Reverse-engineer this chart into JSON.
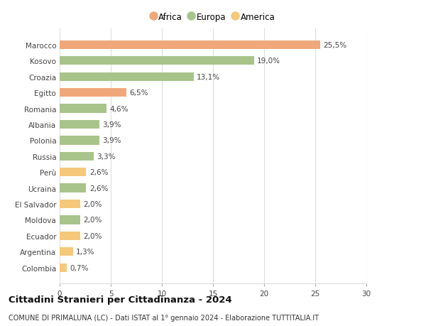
{
  "categories": [
    "Colombia",
    "Argentina",
    "Ecuador",
    "Moldova",
    "El Salvador",
    "Ucraina",
    "Perù",
    "Russia",
    "Polonia",
    "Albania",
    "Romania",
    "Egitto",
    "Croazia",
    "Kosovo",
    "Marocco"
  ],
  "values": [
    0.7,
    1.3,
    2.0,
    2.0,
    2.0,
    2.6,
    2.6,
    3.3,
    3.9,
    3.9,
    4.6,
    6.5,
    13.1,
    19.0,
    25.5
  ],
  "labels": [
    "0,7%",
    "1,3%",
    "2,0%",
    "2,0%",
    "2,0%",
    "2,6%",
    "2,6%",
    "3,3%",
    "3,9%",
    "3,9%",
    "4,6%",
    "6,5%",
    "13,1%",
    "19,0%",
    "25,5%"
  ],
  "colors": [
    "#f5c97a",
    "#f5c97a",
    "#f5c97a",
    "#a8c48a",
    "#f5c97a",
    "#a8c48a",
    "#f5c97a",
    "#a8c48a",
    "#a8c48a",
    "#a8c48a",
    "#a8c48a",
    "#f0a87a",
    "#a8c48a",
    "#a8c48a",
    "#f0a87a"
  ],
  "legend": [
    {
      "label": "Africa",
      "color": "#f0a87a"
    },
    {
      "label": "Europa",
      "color": "#a8c48a"
    },
    {
      "label": "America",
      "color": "#f5c97a"
    }
  ],
  "title": "Cittadini Stranieri per Cittadinanza - 2024",
  "subtitle": "COMUNE DI PRIMALUNA (LC) - Dati ISTAT al 1° gennaio 2024 - Elaborazione TUTTITALIA.IT",
  "xlim": [
    0,
    30
  ],
  "xticks": [
    0,
    5,
    10,
    15,
    20,
    25,
    30
  ],
  "background_color": "#ffffff",
  "grid_color": "#dddddd",
  "bar_height": 0.55,
  "label_fontsize": 7.5,
  "tick_fontsize": 7.5,
  "title_fontsize": 9.5,
  "subtitle_fontsize": 7
}
